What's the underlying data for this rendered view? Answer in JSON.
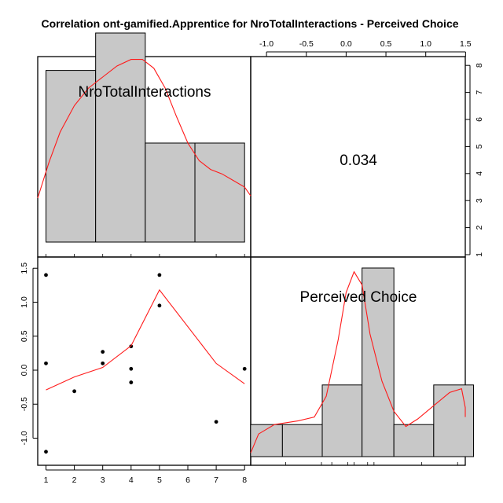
{
  "title": "Correlation ont-gamified.Apprentice for NroTotalInteractions - Perceived Choice",
  "chart_data": {
    "type": "pairs",
    "correlation_label": "0.034",
    "variables": [
      "NroTotalInteractions",
      "Perceived Choice"
    ],
    "top_axis_ticks": [
      "-1.0",
      "-0.5",
      "0.0",
      "0.5",
      "1.0",
      "1.5"
    ],
    "right_axis_ticks": [
      "1",
      "2",
      "3",
      "4",
      "5",
      "6",
      "7",
      "8"
    ],
    "left_axis_ticks": [
      "-1.0",
      "-0.5",
      "0.0",
      "0.5",
      "1.0",
      "1.5"
    ],
    "bottom_axis_ticks": [
      "1",
      "2",
      "3",
      "4",
      "5",
      "6",
      "7",
      "8"
    ],
    "hist_x": {
      "breaks": [
        1,
        2.75,
        4.5,
        6.25,
        8
      ],
      "heights": [
        0.78,
        0.95,
        0.45,
        0.45
      ],
      "density": [
        [
          0.7,
          0.2
        ],
        [
          1.1,
          0.36
        ],
        [
          1.5,
          0.5
        ],
        [
          2.0,
          0.62
        ],
        [
          2.5,
          0.7
        ],
        [
          3.0,
          0.75
        ],
        [
          3.5,
          0.8
        ],
        [
          4.0,
          0.83
        ],
        [
          4.4,
          0.83
        ],
        [
          4.8,
          0.79
        ],
        [
          5.2,
          0.7
        ],
        [
          5.6,
          0.57
        ],
        [
          6.0,
          0.45
        ],
        [
          6.4,
          0.37
        ],
        [
          6.8,
          0.33
        ],
        [
          7.2,
          0.31
        ],
        [
          7.6,
          0.28
        ],
        [
          8.0,
          0.25
        ],
        [
          8.3,
          0.21
        ]
      ],
      "rug": [
        1,
        2,
        3,
        4,
        5,
        7,
        8
      ]
    },
    "hist_y": {
      "breaks": [
        -1.2,
        -0.8,
        -0.3,
        0.2,
        0.6,
        1.1,
        1.6
      ],
      "heights": [
        0.17,
        0.17,
        0.38,
        1.0,
        0.17,
        0.38
      ],
      "density": [
        [
          -1.25,
          0.02
        ],
        [
          -1.1,
          0.12
        ],
        [
          -0.9,
          0.17
        ],
        [
          -0.6,
          0.19
        ],
        [
          -0.4,
          0.21
        ],
        [
          -0.25,
          0.32
        ],
        [
          -0.1,
          0.62
        ],
        [
          0.0,
          0.87
        ],
        [
          0.1,
          0.98
        ],
        [
          0.2,
          0.91
        ],
        [
          0.3,
          0.65
        ],
        [
          0.45,
          0.4
        ],
        [
          0.6,
          0.24
        ],
        [
          0.75,
          0.16
        ],
        [
          0.9,
          0.2
        ],
        [
          1.1,
          0.27
        ],
        [
          1.3,
          0.34
        ],
        [
          1.45,
          0.36
        ],
        [
          1.6,
          0.26
        ],
        [
          1.72,
          0.21
        ]
      ],
      "rug": [
        -1.2,
        -0.76,
        -0.31,
        0.02,
        0.1,
        0.27,
        0.35,
        -0.18,
        0.95,
        1.4
      ]
    },
    "scatter": [
      [
        1,
        1.4
      ],
      [
        1,
        0.1
      ],
      [
        1,
        -1.2
      ],
      [
        2,
        -0.31
      ],
      [
        3,
        0.27
      ],
      [
        3,
        0.1
      ],
      [
        4,
        0.35
      ],
      [
        4,
        0.02
      ],
      [
        4,
        -0.18
      ],
      [
        5,
        1.4
      ],
      [
        5,
        0.95
      ],
      [
        7,
        -0.76
      ],
      [
        8,
        0.02
      ]
    ],
    "smooth": [
      [
        1,
        -0.29
      ],
      [
        2,
        -0.1
      ],
      [
        3,
        0.04
      ],
      [
        4,
        0.36
      ],
      [
        5,
        1.18
      ],
      [
        7,
        0.1
      ],
      [
        8,
        -0.2
      ]
    ]
  },
  "colors": {
    "bar": "#c8c8c8",
    "curve": "#ff1a1a"
  }
}
